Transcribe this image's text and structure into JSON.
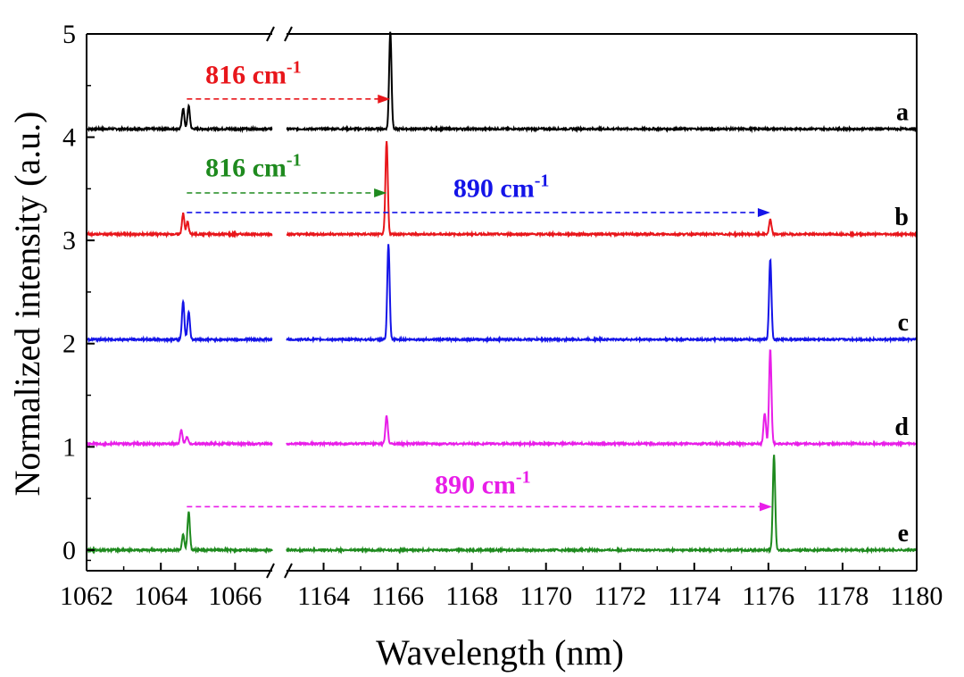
{
  "chart_data": {
    "type": "line",
    "xlabel": "Wavelength (nm)",
    "ylabel": "Normalized intensity (a.u.)",
    "x_break": {
      "left_range": [
        1062,
        1067
      ],
      "right_range": [
        1163,
        1180
      ]
    },
    "x_ticks_left": [
      "1062",
      "1064",
      "1066"
    ],
    "x_ticks_right": [
      "1164",
      "1166",
      "1168",
      "1170",
      "1172",
      "1174",
      "1176",
      "1178",
      "1180"
    ],
    "ylim": [
      -0.2,
      5
    ],
    "y_ticks": [
      "0",
      "1",
      "2",
      "3",
      "4",
      "5"
    ],
    "grid": false,
    "series": [
      {
        "name": "a",
        "color": "#000000",
        "baseline": 4.08,
        "peaks": [
          {
            "x": 1064.6,
            "h": 0.2
          },
          {
            "x": 1064.75,
            "h": 0.22
          },
          {
            "x": 1165.8,
            "h": 0.95
          }
        ]
      },
      {
        "name": "b",
        "color": "#e8161b",
        "baseline": 3.06,
        "peaks": [
          {
            "x": 1064.6,
            "h": 0.2
          },
          {
            "x": 1064.72,
            "h": 0.12
          },
          {
            "x": 1165.7,
            "h": 0.9
          },
          {
            "x": 1176.05,
            "h": 0.14
          }
        ]
      },
      {
        "name": "c",
        "color": "#1414e8",
        "baseline": 2.04,
        "peaks": [
          {
            "x": 1064.6,
            "h": 0.37
          },
          {
            "x": 1064.75,
            "h": 0.27
          },
          {
            "x": 1165.75,
            "h": 0.92
          },
          {
            "x": 1176.05,
            "h": 0.78
          }
        ]
      },
      {
        "name": "d",
        "color": "#e81ee8",
        "baseline": 1.03,
        "peaks": [
          {
            "x": 1064.55,
            "h": 0.13
          },
          {
            "x": 1064.7,
            "h": 0.07
          },
          {
            "x": 1165.7,
            "h": 0.27
          },
          {
            "x": 1175.9,
            "h": 0.3
          },
          {
            "x": 1176.05,
            "h": 0.92
          }
        ]
      },
      {
        "name": "e",
        "color": "#1e8a1e",
        "baseline": 0.0,
        "peaks": [
          {
            "x": 1064.6,
            "h": 0.15
          },
          {
            "x": 1064.75,
            "h": 0.37
          },
          {
            "x": 1176.15,
            "h": 0.92
          }
        ]
      }
    ],
    "annotations": [
      {
        "text": "816 cm",
        "sup": "-1",
        "color": "#e8161b",
        "from_x": 1064.7,
        "to_x": 1165.8,
        "y": 4.37,
        "text_x": 1065.2,
        "text_y": 4.52
      },
      {
        "text": "816 cm",
        "sup": "-1",
        "color": "#1e8a1e",
        "from_x": 1064.7,
        "to_x": 1165.7,
        "y": 3.46,
        "text_x": 1065.2,
        "text_y": 3.62
      },
      {
        "text": "890 cm",
        "sup": "-1",
        "color": "#1414e8",
        "from_x": 1064.7,
        "to_x": 1176.05,
        "y": 3.27,
        "text_x": 1167.5,
        "text_y": 3.42
      },
      {
        "text": "890 cm",
        "sup": "-1",
        "color": "#e81ee8",
        "from_x": 1064.7,
        "to_x": 1176.1,
        "y": 0.42,
        "text_x": 1167.0,
        "text_y": 0.55
      }
    ]
  }
}
